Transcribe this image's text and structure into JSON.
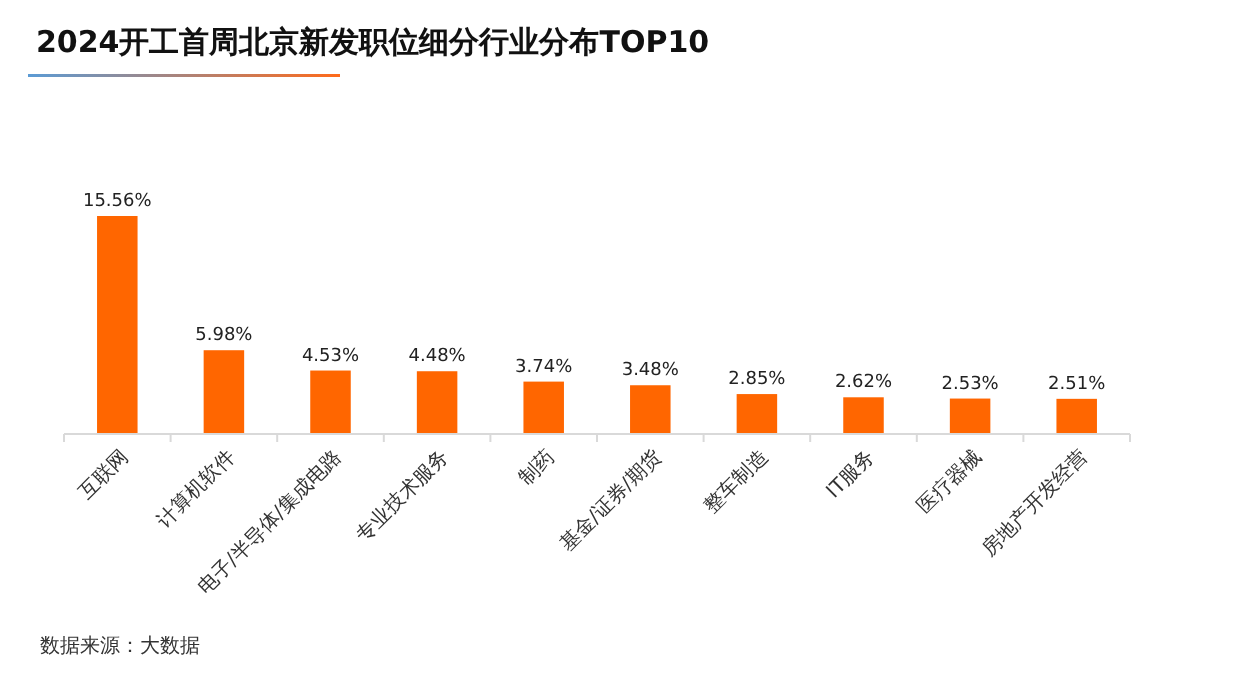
{
  "chart_data": {
    "type": "bar",
    "title": "2024开工首周北京新发职位细分行业分布TOP10",
    "categories": [
      "互联网",
      "计算机软件",
      "电子/半导体/集成电路",
      "专业技术服务",
      "制药",
      "基金/证券/期货",
      "整车制造",
      "IT服务",
      "医疗器械",
      "房地产开发经营"
    ],
    "values": [
      15.56,
      5.98,
      4.53,
      4.48,
      3.74,
      3.48,
      2.85,
      2.62,
      2.53,
      2.51
    ],
    "value_labels": [
      "15.56%",
      "5.98%",
      "4.53%",
      "4.48%",
      "3.74%",
      "3.48%",
      "2.85%",
      "2.62%",
      "2.53%",
      "2.51%"
    ],
    "color": "#ff6600",
    "tick_labels": "x",
    "annotations": [
      "数据来源：大数据"
    ]
  }
}
